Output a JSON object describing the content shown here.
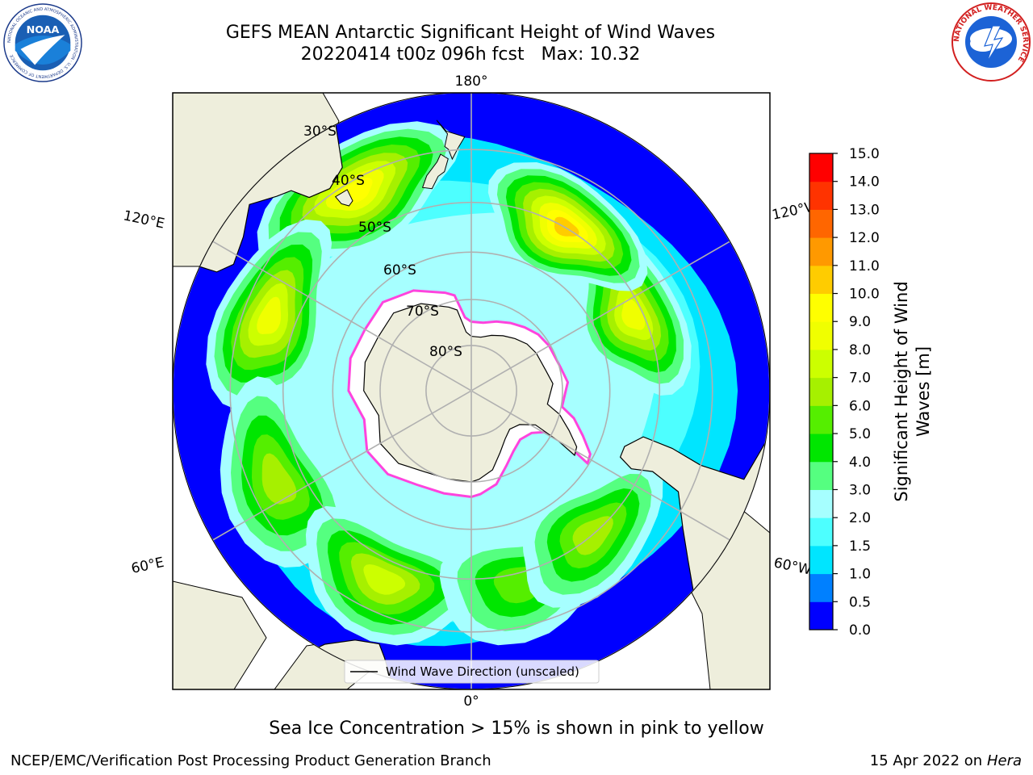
{
  "title": {
    "line1": "GEFS MEAN Antarctic Significant Height of Wind Waves",
    "line2": "20220414 t00z 096h fcst   Max: 10.32"
  },
  "map": {
    "projection": "south-polar-stereographic",
    "longitude_labels": [
      "180°",
      "120°E",
      "120°W",
      "60°E",
      "60°W",
      "0°"
    ],
    "latitude_labels": [
      "30°S",
      "40°S",
      "50°S",
      "60°S",
      "70°S",
      "80°S"
    ],
    "legend_label": "Wind Wave Direction (unscaled)",
    "colors": {
      "land": "#eeeedc",
      "arrow": "#ff0000",
      "grid": "#b0b0b0",
      "ice_edge": "#ff44dd"
    },
    "wave_max_areas": [
      {
        "lon": 150,
        "lat": -42,
        "value": 9.5
      },
      {
        "lon": 110,
        "lat": -45,
        "value": 8.5
      },
      {
        "lon": 65,
        "lat": -45,
        "value": 7.0
      },
      {
        "lon": 25,
        "lat": -46,
        "value": 7.5
      },
      {
        "lon": -15,
        "lat": -48,
        "value": 6.0
      },
      {
        "lon": -40,
        "lat": -50,
        "value": 7.0
      },
      {
        "lon": -115,
        "lat": -52,
        "value": 9.0
      },
      {
        "lon": -150,
        "lat": -50,
        "value": 10.32
      }
    ]
  },
  "colorbar": {
    "label_line1": "Significant Height of Wind",
    "label_line2": "Waves [m]",
    "ticks": [
      "0.0",
      "0.5",
      "1.0",
      "1.5",
      "2.0",
      "3.0",
      "4.0",
      "5.0",
      "6.0",
      "7.0",
      "8.0",
      "9.0",
      "10.0",
      "11.0",
      "12.0",
      "13.0",
      "14.0",
      "15.0"
    ],
    "colors": [
      "#0000ff",
      "#0080ff",
      "#00e5ff",
      "#4dffff",
      "#a6ffff",
      "#55ff80",
      "#00e600",
      "#55ee00",
      "#a6f000",
      "#ccff00",
      "#f0ff00",
      "#ffff00",
      "#ffcc00",
      "#ff9900",
      "#ff6600",
      "#ff3300",
      "#ff0000"
    ]
  },
  "footer": {
    "note": "Sea Ice Concentration > 15% is shown in pink to yellow",
    "left": "NCEP/EMC/Verification Post Processing Product Generation Branch",
    "date": "15 Apr 2022 on ",
    "machine": "Hera"
  },
  "logos": {
    "noaa_text": "NOAA",
    "noaa_ring_text": "NATIONAL OCEANIC AND ATMOSPHERIC ADMINISTRATION · U.S. DEPARTMENT OF COMMERCE",
    "nws_ring_text": "NATIONAL WEATHER SERVICE"
  }
}
